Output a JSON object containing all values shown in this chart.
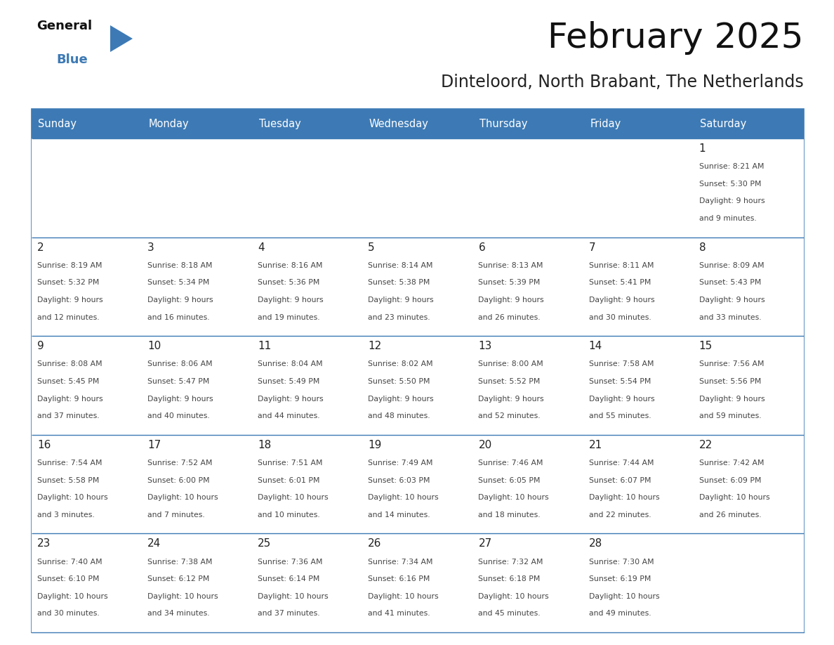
{
  "title": "February 2025",
  "subtitle": "Dinteloord, North Brabant, The Netherlands",
  "header_bg": "#3d7ab5",
  "header_text_color": "#ffffff",
  "cell_bg": "#ffffff",
  "border_color": "#3d7ab5",
  "days_of_week": [
    "Sunday",
    "Monday",
    "Tuesday",
    "Wednesday",
    "Thursday",
    "Friday",
    "Saturday"
  ],
  "text_color": "#444444",
  "day_number_color": "#222222",
  "calendar_data": [
    [
      null,
      null,
      null,
      null,
      null,
      null,
      {
        "day": 1,
        "sunrise": "8:21 AM",
        "sunset": "5:30 PM",
        "daylight_hours": 9,
        "daylight_minutes": 9
      }
    ],
    [
      {
        "day": 2,
        "sunrise": "8:19 AM",
        "sunset": "5:32 PM",
        "daylight_hours": 9,
        "daylight_minutes": 12
      },
      {
        "day": 3,
        "sunrise": "8:18 AM",
        "sunset": "5:34 PM",
        "daylight_hours": 9,
        "daylight_minutes": 16
      },
      {
        "day": 4,
        "sunrise": "8:16 AM",
        "sunset": "5:36 PM",
        "daylight_hours": 9,
        "daylight_minutes": 19
      },
      {
        "day": 5,
        "sunrise": "8:14 AM",
        "sunset": "5:38 PM",
        "daylight_hours": 9,
        "daylight_minutes": 23
      },
      {
        "day": 6,
        "sunrise": "8:13 AM",
        "sunset": "5:39 PM",
        "daylight_hours": 9,
        "daylight_minutes": 26
      },
      {
        "day": 7,
        "sunrise": "8:11 AM",
        "sunset": "5:41 PM",
        "daylight_hours": 9,
        "daylight_minutes": 30
      },
      {
        "day": 8,
        "sunrise": "8:09 AM",
        "sunset": "5:43 PM",
        "daylight_hours": 9,
        "daylight_minutes": 33
      }
    ],
    [
      {
        "day": 9,
        "sunrise": "8:08 AM",
        "sunset": "5:45 PM",
        "daylight_hours": 9,
        "daylight_minutes": 37
      },
      {
        "day": 10,
        "sunrise": "8:06 AM",
        "sunset": "5:47 PM",
        "daylight_hours": 9,
        "daylight_minutes": 40
      },
      {
        "day": 11,
        "sunrise": "8:04 AM",
        "sunset": "5:49 PM",
        "daylight_hours": 9,
        "daylight_minutes": 44
      },
      {
        "day": 12,
        "sunrise": "8:02 AM",
        "sunset": "5:50 PM",
        "daylight_hours": 9,
        "daylight_minutes": 48
      },
      {
        "day": 13,
        "sunrise": "8:00 AM",
        "sunset": "5:52 PM",
        "daylight_hours": 9,
        "daylight_minutes": 52
      },
      {
        "day": 14,
        "sunrise": "7:58 AM",
        "sunset": "5:54 PM",
        "daylight_hours": 9,
        "daylight_minutes": 55
      },
      {
        "day": 15,
        "sunrise": "7:56 AM",
        "sunset": "5:56 PM",
        "daylight_hours": 9,
        "daylight_minutes": 59
      }
    ],
    [
      {
        "day": 16,
        "sunrise": "7:54 AM",
        "sunset": "5:58 PM",
        "daylight_hours": 10,
        "daylight_minutes": 3
      },
      {
        "day": 17,
        "sunrise": "7:52 AM",
        "sunset": "6:00 PM",
        "daylight_hours": 10,
        "daylight_minutes": 7
      },
      {
        "day": 18,
        "sunrise": "7:51 AM",
        "sunset": "6:01 PM",
        "daylight_hours": 10,
        "daylight_minutes": 10
      },
      {
        "day": 19,
        "sunrise": "7:49 AM",
        "sunset": "6:03 PM",
        "daylight_hours": 10,
        "daylight_minutes": 14
      },
      {
        "day": 20,
        "sunrise": "7:46 AM",
        "sunset": "6:05 PM",
        "daylight_hours": 10,
        "daylight_minutes": 18
      },
      {
        "day": 21,
        "sunrise": "7:44 AM",
        "sunset": "6:07 PM",
        "daylight_hours": 10,
        "daylight_minutes": 22
      },
      {
        "day": 22,
        "sunrise": "7:42 AM",
        "sunset": "6:09 PM",
        "daylight_hours": 10,
        "daylight_minutes": 26
      }
    ],
    [
      {
        "day": 23,
        "sunrise": "7:40 AM",
        "sunset": "6:10 PM",
        "daylight_hours": 10,
        "daylight_minutes": 30
      },
      {
        "day": 24,
        "sunrise": "7:38 AM",
        "sunset": "6:12 PM",
        "daylight_hours": 10,
        "daylight_minutes": 34
      },
      {
        "day": 25,
        "sunrise": "7:36 AM",
        "sunset": "6:14 PM",
        "daylight_hours": 10,
        "daylight_minutes": 37
      },
      {
        "day": 26,
        "sunrise": "7:34 AM",
        "sunset": "6:16 PM",
        "daylight_hours": 10,
        "daylight_minutes": 41
      },
      {
        "day": 27,
        "sunrise": "7:32 AM",
        "sunset": "6:18 PM",
        "daylight_hours": 10,
        "daylight_minutes": 45
      },
      {
        "day": 28,
        "sunrise": "7:30 AM",
        "sunset": "6:19 PM",
        "daylight_hours": 10,
        "daylight_minutes": 49
      },
      null
    ]
  ]
}
